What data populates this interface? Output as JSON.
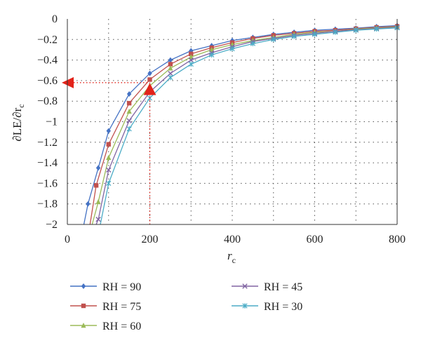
{
  "chart_data": {
    "type": "line",
    "title": "",
    "xlabel": "r",
    "xlabel_sub": "c",
    "ylabel": "∂LE/∂r",
    "ylabel_sub": "c",
    "xlim": [
      0,
      800
    ],
    "ylim": [
      -2,
      0
    ],
    "xticks": [
      0,
      200,
      400,
      600,
      800
    ],
    "yticks": [
      0,
      -0.2,
      -0.4,
      -0.6,
      -0.8,
      -1,
      -1.2,
      -1.4,
      -1.6,
      -1.8,
      -2
    ],
    "xtick_labels": [
      "0",
      "200",
      "400",
      "600",
      "800"
    ],
    "ytick_labels": [
      "0",
      "−0.2",
      "−0.4",
      "−0.6",
      "−0.8",
      "−1",
      "−1.2",
      "−1.4",
      "−1.6",
      "−1.8",
      "−2"
    ],
    "grid": "dotted",
    "legend_position": "bottom",
    "series": [
      {
        "name": "RH = 90",
        "color": "#4472C4",
        "marker": "diamond",
        "x": [
          40,
          50,
          75,
          100,
          150,
          200,
          250,
          300,
          350,
          400,
          450,
          500,
          550,
          600,
          650,
          700,
          750,
          800
        ],
        "y": [
          -2.0,
          -1.8,
          -1.45,
          -1.09,
          -0.73,
          -0.53,
          -0.4,
          -0.31,
          -0.26,
          -0.21,
          -0.18,
          -0.15,
          -0.13,
          -0.11,
          -0.1,
          -0.09,
          -0.075,
          -0.065
        ]
      },
      {
        "name": "RH = 75",
        "color": "#C0504D",
        "marker": "square",
        "x": [
          55,
          70,
          100,
          150,
          200,
          250,
          300,
          350,
          400,
          450,
          500,
          550,
          600,
          650,
          700,
          750,
          800
        ],
        "y": [
          -2.0,
          -1.62,
          -1.22,
          -0.82,
          -0.59,
          -0.44,
          -0.34,
          -0.28,
          -0.23,
          -0.19,
          -0.16,
          -0.14,
          -0.12,
          -0.11,
          -0.095,
          -0.082,
          -0.072
        ]
      },
      {
        "name": "RH = 60",
        "color": "#9BBB59",
        "marker": "triangle",
        "x": [
          60,
          75,
          100,
          150,
          200,
          250,
          300,
          350,
          400,
          450,
          500,
          550,
          600,
          650,
          700,
          750,
          800
        ],
        "y": [
          -2.0,
          -1.78,
          -1.35,
          -0.9,
          -0.65,
          -0.48,
          -0.37,
          -0.3,
          -0.25,
          -0.21,
          -0.18,
          -0.15,
          -0.13,
          -0.12,
          -0.1,
          -0.088,
          -0.078
        ]
      },
      {
        "name": "RH = 45",
        "color": "#8064A2",
        "marker": "x",
        "x": [
          70,
          75,
          100,
          150,
          200,
          250,
          300,
          350,
          400,
          450,
          500,
          550,
          600,
          650,
          700,
          750,
          800
        ],
        "y": [
          -2.0,
          -1.95,
          -1.47,
          -0.99,
          -0.71,
          -0.53,
          -0.4,
          -0.33,
          -0.27,
          -0.22,
          -0.19,
          -0.16,
          -0.14,
          -0.12,
          -0.105,
          -0.093,
          -0.082
        ]
      },
      {
        "name": "RH = 30",
        "color": "#4BACC6",
        "marker": "star",
        "x": [
          80,
          100,
          150,
          200,
          250,
          300,
          350,
          400,
          450,
          500,
          550,
          600,
          650,
          700,
          750,
          800
        ],
        "y": [
          -2.0,
          -1.6,
          -1.07,
          -0.77,
          -0.57,
          -0.44,
          -0.35,
          -0.29,
          -0.24,
          -0.2,
          -0.17,
          -0.15,
          -0.13,
          -0.11,
          -0.098,
          -0.087
        ]
      }
    ],
    "annotations": {
      "color": "#E2231A",
      "guide_lines": [
        {
          "x": 200,
          "y": -0.7
        },
        {
          "x": 0,
          "y": -0.62
        }
      ],
      "triangle_up": {
        "x": 200,
        "y": -0.7
      },
      "arrow_left": {
        "x": 0,
        "y": -0.62
      }
    },
    "extra_gridlines_x": [
      100,
      300,
      500,
      700
    ]
  }
}
